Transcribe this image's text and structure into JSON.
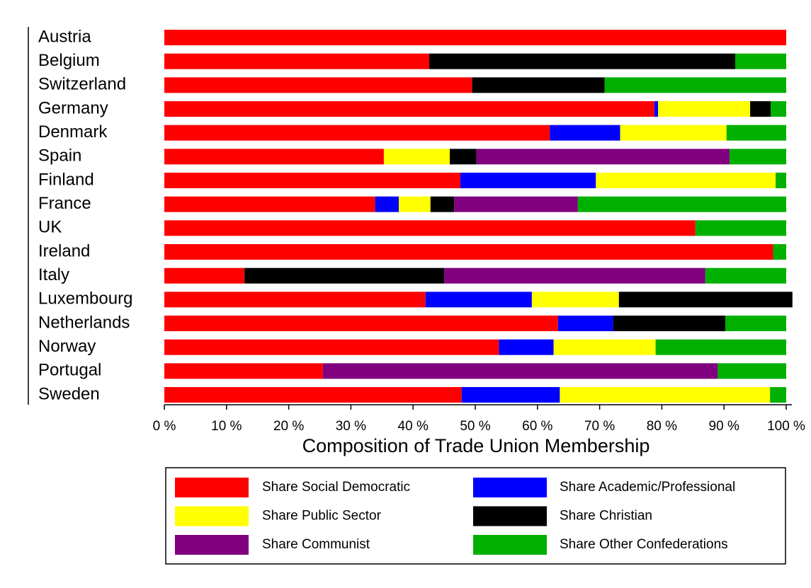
{
  "chart_data": {
    "type": "stacked-bar-horizontal",
    "x_label": "Composition of Trade Union Membership",
    "categories": [
      "Austria",
      "Belgium",
      "Switzerland",
      "Germany",
      "Denmark",
      "Spain",
      "Finland",
      "France",
      "UK",
      "Ireland",
      "Italy",
      "Luxembourg",
      "Netherlands",
      "Norway",
      "Portugal",
      "Sweden"
    ],
    "series": [
      {
        "name": "Share Social Democratic",
        "color": "#ff0000",
        "values": [
          100,
          42.6,
          49.5,
          78.8,
          62.0,
          35.3,
          47.6,
          33.9,
          85.4,
          97.9,
          12.9,
          42.0,
          63.3,
          53.8,
          25.5,
          47.8
        ]
      },
      {
        "name": "Share Academic/Professional",
        "color": "#0000ff",
        "values": [
          0,
          0,
          0,
          0.6,
          11.3,
          0,
          21.8,
          3.8,
          0,
          0,
          0,
          17.1,
          8.9,
          8.8,
          0,
          15.8
        ]
      },
      {
        "name": "Share Public Sector",
        "color": "#ffff00",
        "values": [
          0,
          0,
          0,
          14.8,
          17.1,
          10.6,
          28.9,
          5.1,
          0,
          0,
          0,
          14.0,
          0,
          16.4,
          0,
          33.8
        ]
      },
      {
        "name": "Share Christian",
        "color": "#000000",
        "values": [
          0,
          49.2,
          21.3,
          3.3,
          0,
          4.3,
          0,
          3.8,
          0,
          0,
          32.1,
          27.9,
          18.0,
          0,
          0,
          0
        ]
      },
      {
        "name": "Share Communist",
        "color": "#800080",
        "values": [
          0,
          0,
          0,
          0,
          0,
          40.7,
          0,
          19.9,
          0,
          0,
          42.0,
          0,
          0,
          0,
          63.5,
          0
        ]
      },
      {
        "name": "Share Other Confederations",
        "color": "#00b000",
        "values": [
          0,
          8.2,
          29.2,
          2.5,
          9.6,
          9.1,
          1.7,
          33.5,
          14.6,
          2.1,
          13.0,
          0,
          9.8,
          21.0,
          11.0,
          2.6
        ]
      }
    ],
    "xlim": [
      0,
      100
    ],
    "xticks": [
      {
        "value": 0,
        "label": "0 %"
      },
      {
        "value": 10,
        "label": "10 %"
      },
      {
        "value": 20,
        "label": "20 %"
      },
      {
        "value": 30,
        "label": "30 %"
      },
      {
        "value": 40,
        "label": "40 %"
      },
      {
        "value": 50,
        "label": "50 %"
      },
      {
        "value": 60,
        "label": "60 %"
      },
      {
        "value": 70,
        "label": "70 %"
      },
      {
        "value": 80,
        "label": "80 %"
      },
      {
        "value": 90,
        "label": "90 %"
      },
      {
        "value": 100,
        "label": "100 %"
      }
    ]
  }
}
